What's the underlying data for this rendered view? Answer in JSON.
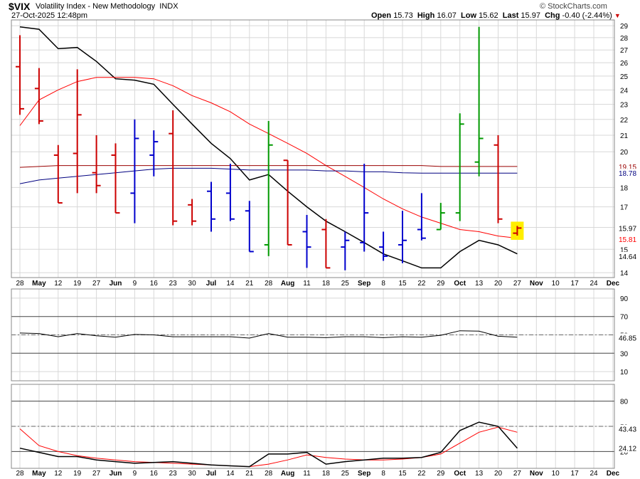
{
  "header": {
    "symbol": "$VIX",
    "description": "Volatility Index - New Methodology",
    "exchange": "INDX",
    "date": "27-Oct-2025 12:48pm",
    "watermark": "© StockCharts.com",
    "open_label": "Open",
    "open": "15.73",
    "high_label": "High",
    "high": "16.07",
    "low_label": "Low",
    "low": "15.62",
    "last_label": "Last",
    "last": "15.97",
    "chg_label": "Chg",
    "chg": "-0.40 (-2.44%)",
    "chg_arrow_color": "#cc0000"
  },
  "colors": {
    "up": "#009900",
    "down": "#cc0000",
    "neutral": "#0000cc",
    "black_line": "#000000",
    "red_line": "#ff0000",
    "navy_line": "#000080",
    "maroon_line": "#990000",
    "grid": "#d8d8d8",
    "last_highlight": "#ffee00"
  },
  "chart_data": [
    {
      "type": "ohlc",
      "panel": "price",
      "ylim": [
        13.8,
        29.5
      ],
      "y_scale": "log",
      "y_ticks": [
        "14",
        "15",
        "16",
        "17",
        "18",
        "20",
        "21",
        "22",
        "23",
        "24",
        "25",
        "26",
        "27",
        "28",
        "29"
      ],
      "x_tick_labels": [
        "28",
        "May",
        "12",
        "19",
        "27",
        "Jun",
        "9",
        "16",
        "23",
        "30",
        "Jul",
        "14",
        "21",
        "28",
        "Aug",
        "11",
        "18",
        "25",
        "Sep",
        "8",
        "15",
        "22",
        "29",
        "Oct",
        "13",
        "20",
        "27",
        "Nov",
        "10",
        "17",
        "24",
        "Dec"
      ],
      "bars": [
        {
          "date": "Apr 28",
          "o": 25.7,
          "h": 28.2,
          "l": 22.3,
          "c": 22.7,
          "color": "down"
        },
        {
          "date": "May 5",
          "o": 24.1,
          "h": 25.6,
          "l": 21.7,
          "c": 21.9,
          "color": "down"
        },
        {
          "date": "May 12",
          "o": 19.8,
          "h": 20.4,
          "l": 17.2,
          "c": 17.2,
          "color": "down"
        },
        {
          "date": "May 19",
          "o": 19.9,
          "h": 25.5,
          "l": 17.7,
          "c": 22.3,
          "color": "down"
        },
        {
          "date": "May 27",
          "o": 18.8,
          "h": 21.0,
          "l": 17.7,
          "c": 18.1,
          "color": "down"
        },
        {
          "date": "Jun 2",
          "o": 19.8,
          "h": 20.5,
          "l": 16.7,
          "c": 16.7,
          "color": "down"
        },
        {
          "date": "Jun 9",
          "o": 17.7,
          "h": 22.0,
          "l": 16.2,
          "c": 20.8,
          "color": "neutral"
        },
        {
          "date": "Jun 16",
          "o": 19.8,
          "h": 21.3,
          "l": 18.6,
          "c": 20.6,
          "color": "neutral"
        },
        {
          "date": "Jun 23",
          "o": 21.1,
          "h": 22.6,
          "l": 16.1,
          "c": 16.3,
          "color": "down"
        },
        {
          "date": "Jun 30",
          "o": 17.1,
          "h": 17.4,
          "l": 16.1,
          "c": 16.3,
          "color": "down"
        },
        {
          "date": "Jul 7",
          "o": 17.8,
          "h": 18.3,
          "l": 15.8,
          "c": 16.4,
          "color": "neutral"
        },
        {
          "date": "Jul 14",
          "o": 17.7,
          "h": 19.3,
          "l": 16.3,
          "c": 16.4,
          "color": "neutral"
        },
        {
          "date": "Jul 21",
          "o": 16.8,
          "h": 17.3,
          "l": 14.9,
          "c": 14.9,
          "color": "neutral"
        },
        {
          "date": "Jul 28",
          "o": 15.2,
          "h": 21.9,
          "l": 14.7,
          "c": 20.4,
          "color": "up"
        },
        {
          "date": "Aug 4",
          "o": 19.5,
          "h": 19.5,
          "l": 15.2,
          "c": 15.2,
          "color": "down"
        },
        {
          "date": "Aug 11",
          "o": 15.8,
          "h": 16.6,
          "l": 14.2,
          "c": 15.1,
          "color": "neutral"
        },
        {
          "date": "Aug 18",
          "o": 15.9,
          "h": 16.4,
          "l": 14.2,
          "c": 14.2,
          "color": "down"
        },
        {
          "date": "Aug 25",
          "o": 15.1,
          "h": 15.8,
          "l": 14.1,
          "c": 15.4,
          "color": "neutral"
        },
        {
          "date": "Sep 2",
          "o": 15.3,
          "h": 19.3,
          "l": 14.9,
          "c": 16.7,
          "color": "neutral"
        },
        {
          "date": "Sep 8",
          "o": 15.1,
          "h": 15.8,
          "l": 14.5,
          "c": 14.7,
          "color": "neutral"
        },
        {
          "date": "Sep 15",
          "o": 15.2,
          "h": 16.8,
          "l": 14.4,
          "c": 15.4,
          "color": "neutral"
        },
        {
          "date": "Sep 22",
          "o": 15.9,
          "h": 17.7,
          "l": 15.4,
          "c": 15.5,
          "color": "neutral"
        },
        {
          "date": "Sep 29",
          "o": 15.9,
          "h": 17.2,
          "l": 15.9,
          "c": 16.7,
          "color": "up"
        },
        {
          "date": "Oct 6",
          "o": 16.7,
          "h": 22.4,
          "l": 16.3,
          "c": 21.7,
          "color": "up"
        },
        {
          "date": "Oct 13",
          "o": 19.4,
          "h": 28.9,
          "l": 18.6,
          "c": 20.8,
          "color": "up"
        },
        {
          "date": "Oct 20",
          "o": 20.4,
          "h": 21.0,
          "l": 16.2,
          "c": 16.4,
          "color": "down"
        },
        {
          "date": "Oct 27",
          "o": 15.73,
          "h": 16.07,
          "l": 15.62,
          "c": 15.97,
          "color": "down"
        }
      ],
      "overlays": [
        {
          "label": "black",
          "color_key": "black_line",
          "values": [
            28.9,
            28.7,
            27.1,
            27.2,
            26.1,
            24.8,
            24.7,
            24.4,
            23.0,
            21.7,
            20.5,
            19.6,
            18.4,
            18.7,
            17.8,
            17.0,
            16.3,
            15.8,
            15.3,
            14.8,
            14.5,
            14.2,
            14.2,
            14.9,
            15.4,
            15.2,
            14.8
          ]
        },
        {
          "label": "red",
          "color_key": "red_line",
          "values": [
            21.6,
            23.3,
            24.0,
            24.6,
            24.9,
            24.9,
            24.9,
            24.8,
            24.3,
            23.6,
            23.1,
            22.5,
            21.7,
            21.1,
            20.5,
            19.9,
            19.2,
            18.6,
            18.0,
            17.4,
            16.9,
            16.5,
            16.2,
            15.9,
            15.8,
            15.6,
            15.5
          ]
        },
        {
          "label": "navy",
          "value_label": "18.78",
          "color_key": "navy_line",
          "values": [
            18.2,
            18.4,
            18.5,
            18.6,
            18.7,
            18.8,
            18.9,
            19.0,
            19.05,
            19.05,
            19.05,
            19.0,
            18.95,
            18.95,
            18.95,
            18.95,
            18.9,
            18.9,
            18.85,
            18.85,
            18.8,
            18.78,
            18.78,
            18.78,
            18.78,
            18.78,
            18.78
          ]
        },
        {
          "label": "maroon",
          "value_label": "19.15",
          "color_key": "maroon_line",
          "values": [
            19.1,
            19.15,
            19.2,
            19.2,
            19.2,
            19.2,
            19.2,
            19.2,
            19.2,
            19.2,
            19.2,
            19.2,
            19.2,
            19.2,
            19.2,
            19.2,
            19.2,
            19.2,
            19.2,
            19.2,
            19.2,
            19.2,
            19.15,
            19.15,
            19.15,
            19.15,
            19.15
          ]
        }
      ],
      "value_labels": [
        "19.15",
        "18.78",
        "15.97",
        "15.81",
        "14.64"
      ]
    },
    {
      "type": "line",
      "panel": "indicator-1",
      "ylim": [
        0,
        100
      ],
      "y_ticks": [
        "90",
        "70",
        "50",
        "30",
        "10"
      ],
      "x_tick_labels": [
        "28",
        "May",
        "12",
        "19",
        "27",
        "Jun",
        "9",
        "16",
        "23",
        "30",
        "Jul",
        "14",
        "21",
        "28",
        "Aug",
        "11",
        "18",
        "25",
        "Sep",
        "8",
        "15",
        "22",
        "29",
        "Oct",
        "13",
        "20",
        "27",
        "Nov",
        "10",
        "17",
        "24",
        "Dec"
      ],
      "series": [
        {
          "values": [
            52,
            51.5,
            48,
            51.5,
            49,
            47.5,
            50.5,
            50,
            48,
            48,
            48,
            48,
            46.5,
            51.5,
            47.5,
            47.5,
            47,
            48,
            48,
            47,
            48,
            47.5,
            49.5,
            54.5,
            54,
            48.5,
            47.5
          ]
        }
      ],
      "value_labels": [
        "46.85"
      ]
    },
    {
      "type": "line",
      "panel": "indicator-2",
      "ylim": [
        0,
        100
      ],
      "y_ticks": [
        "80",
        "50",
        "20"
      ],
      "x_tick_labels": [
        "28",
        "May",
        "12",
        "19",
        "27",
        "Jun",
        "9",
        "16",
        "23",
        "30",
        "Jul",
        "14",
        "21",
        "28",
        "Aug",
        "11",
        "18",
        "25",
        "Sep",
        "8",
        "15",
        "22",
        "29",
        "Oct",
        "13",
        "20",
        "27",
        "Nov",
        "10",
        "17",
        "24",
        "Dec"
      ],
      "series": [
        {
          "color_key": "black_line",
          "values": [
            24,
            19,
            14,
            14,
            10,
            8,
            6,
            7,
            8,
            6,
            4,
            3,
            2,
            17,
            17,
            19,
            5,
            8,
            10,
            12,
            12,
            13,
            19,
            45,
            55,
            50,
            24
          ]
        },
        {
          "color_key": "red_line",
          "values": [
            47,
            27,
            20,
            15,
            12,
            10,
            8,
            7,
            6,
            5,
            4,
            3,
            2,
            5,
            10,
            16,
            13,
            11,
            10,
            10,
            11,
            13,
            17,
            30,
            43,
            49,
            43
          ]
        }
      ],
      "value_labels": [
        "43.43",
        "24.12"
      ]
    }
  ]
}
